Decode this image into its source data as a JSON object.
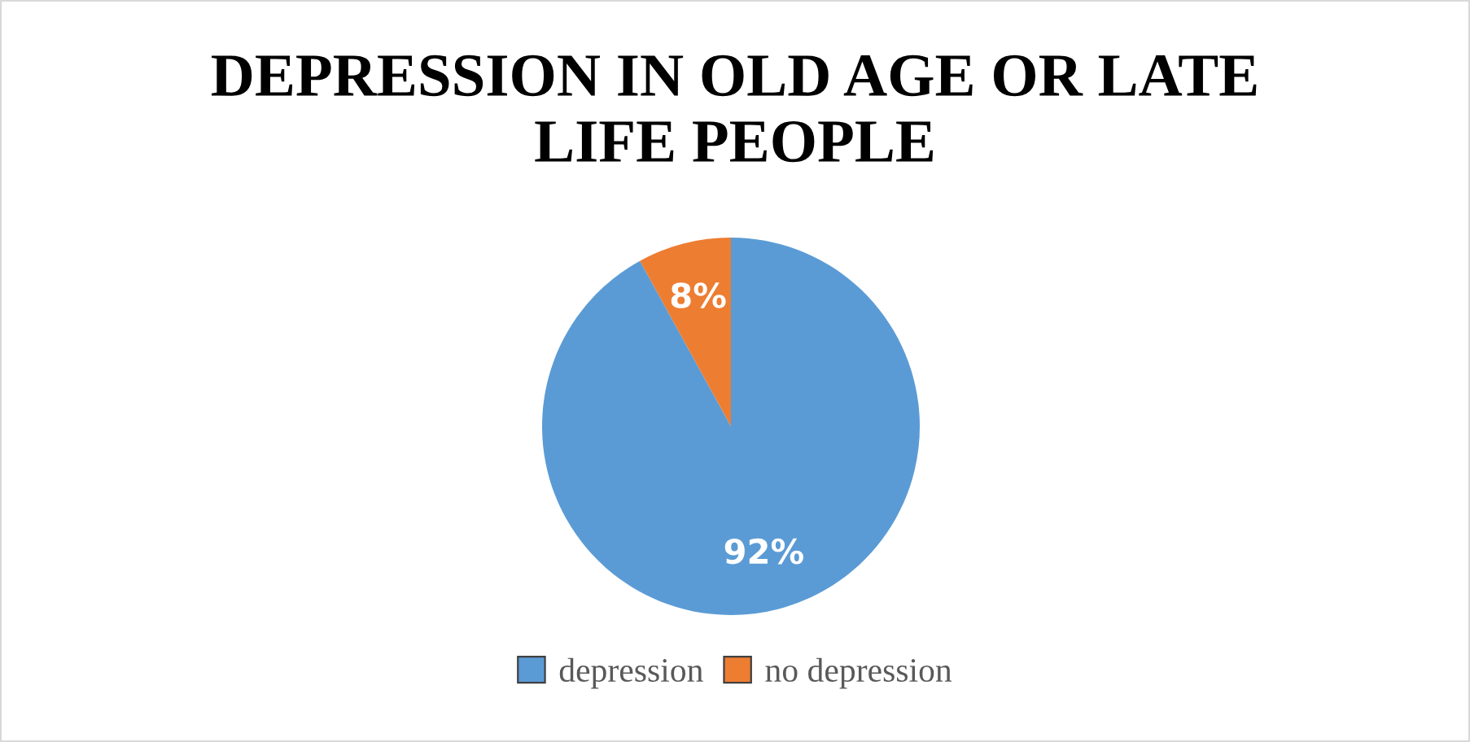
{
  "chart_data": {
    "type": "pie",
    "title": "DEPRESSION IN OLD AGE OR LATE LIFE PEOPLE",
    "categories": [
      "depression",
      "no depression"
    ],
    "values": [
      92,
      8
    ],
    "colors": [
      "#5b9bd5",
      "#ed7d31"
    ],
    "value_labels": [
      "92%",
      "8%"
    ],
    "legend": "bottom"
  }
}
